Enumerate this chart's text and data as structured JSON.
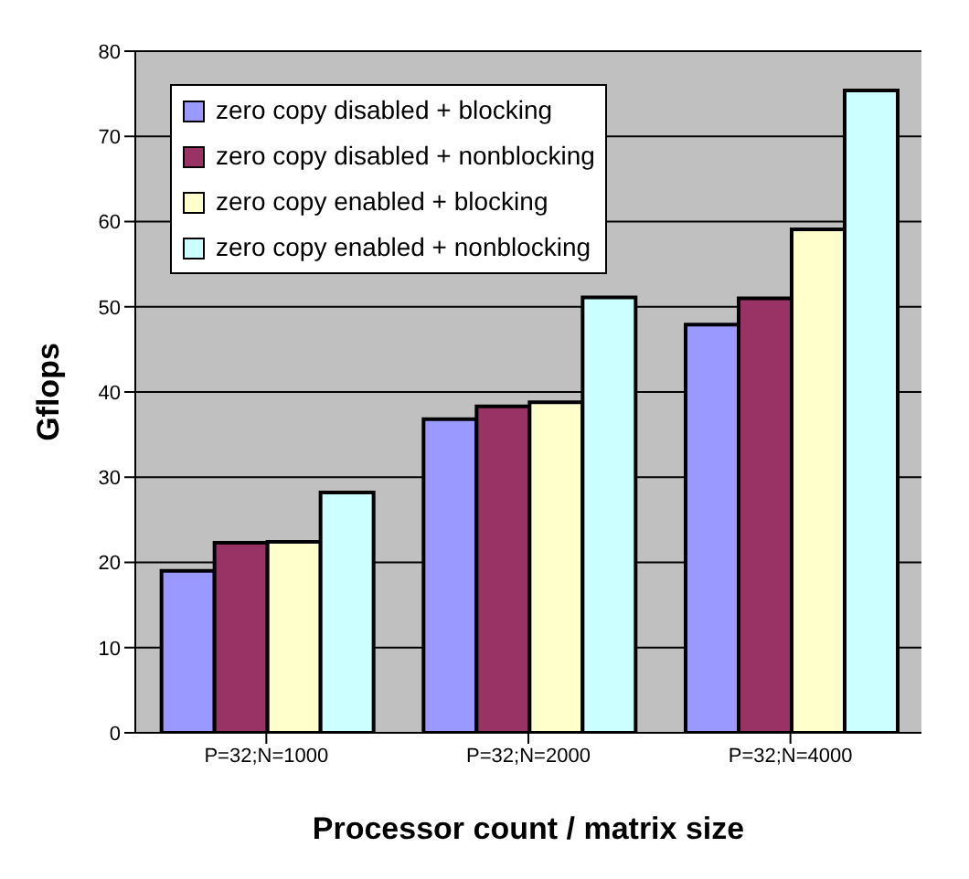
{
  "chart_data": {
    "type": "bar",
    "xlabel": "Processor count / matrix size",
    "ylabel": "Gflops",
    "categories": [
      "P=32;N=1000",
      "P=32;N=2000",
      "P=32;N=4000"
    ],
    "series": [
      {
        "name": "zero copy disabled + blocking",
        "color": "#9999ff",
        "values": [
          19.0,
          36.8,
          47.9
        ]
      },
      {
        "name": "zero copy disabled + nonblocking",
        "color": "#993366",
        "values": [
          22.3,
          38.3,
          51.0
        ]
      },
      {
        "name": "zero copy enabled + blocking",
        "color": "#ffffcc",
        "values": [
          22.4,
          38.8,
          59.1
        ]
      },
      {
        "name": "zero copy enabled + nonblocking",
        "color": "#ccffff",
        "values": [
          28.2,
          51.1,
          75.4
        ]
      }
    ],
    "ylim": [
      0,
      80
    ],
    "yticks": [
      0,
      10,
      20,
      30,
      40,
      50,
      60,
      70,
      80
    ],
    "grid": "y",
    "legend": "top left"
  }
}
